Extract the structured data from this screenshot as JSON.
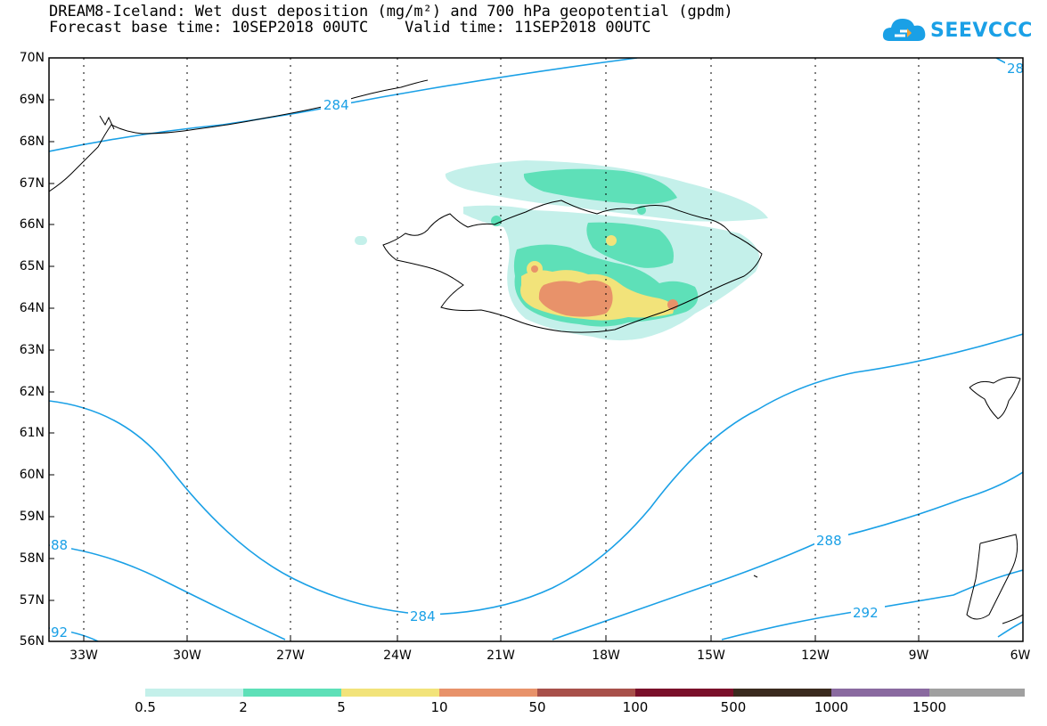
{
  "header": {
    "title_line1": "DREAM8-Iceland: Wet dust deposition (mg/m²) and 700 hPa geopotential (gpdm)",
    "title_line2": "Forecast base time: 10SEP2018 00UTC    Valid time: 11SEP2018 00UTC",
    "logo_text": "SEEVCCC"
  },
  "map": {
    "lat_labels": [
      "70N",
      "69N",
      "68N",
      "67N",
      "66N",
      "65N",
      "64N",
      "63N",
      "62N",
      "61N",
      "60N",
      "59N",
      "58N",
      "57N",
      "56N"
    ],
    "lon_labels": [
      "33W",
      "30W",
      "27W",
      "24W",
      "21W",
      "18W",
      "15W",
      "12W",
      "9W",
      "6W"
    ],
    "contour_labels": [
      "284",
      "28",
      "284",
      "88",
      "92",
      "288",
      "292"
    ],
    "colors": {
      "contour": "#1aa0e6",
      "coast": "#000000"
    }
  },
  "legend": {
    "labels": [
      "0.5",
      "2",
      "5",
      "10",
      "50",
      "100",
      "500",
      "1000",
      "1500"
    ],
    "colors": [
      "#c4f0ea",
      "#5ee0b8",
      "#f2e37a",
      "#e8926a",
      "#a8504a",
      "#7a0f2a",
      "#3a2a1e",
      "#8a6aa0",
      "#a0a0a0"
    ]
  }
}
